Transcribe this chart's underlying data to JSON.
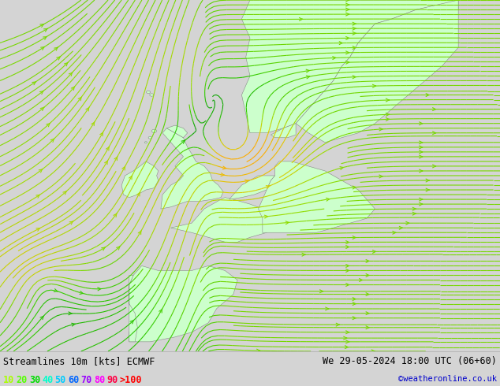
{
  "title_left": "Streamlines 10m [kts] ECMWF",
  "title_right": "We 29-05-2024 18:00 UTC (06+60)",
  "copyright": "©weatheronline.co.uk",
  "legend_values": [
    "10",
    "20",
    "30",
    "40",
    "50",
    "60",
    "70",
    "80",
    "90",
    ">100"
  ],
  "legend_colors": [
    "#aaff00",
    "#55ff00",
    "#00dd00",
    "#00ffcc",
    "#00ccff",
    "#0066ff",
    "#9900ff",
    "#ff00ff",
    "#ff0044",
    "#ff0000"
  ],
  "bg_color": "#d4d4d4",
  "land_color": "#ccffcc",
  "sea_color": "#e2e2e2",
  "figsize": [
    6.34,
    4.9
  ],
  "dpi": 100,
  "bottom_bar_color": "#ffffff",
  "title_fontsize": 8.5,
  "legend_fontsize": 8.5
}
